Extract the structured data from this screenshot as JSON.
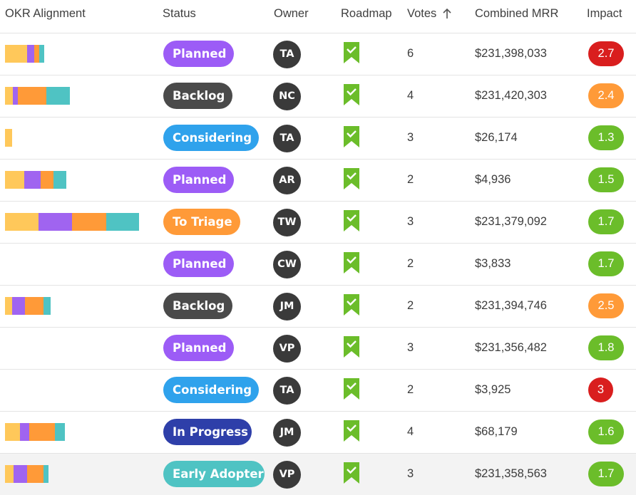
{
  "header": {
    "okr": "OKR Alignment",
    "status": "Status",
    "owner": "Owner",
    "roadmap": "Roadmap",
    "votes": "Votes",
    "mrr": "Combined MRR",
    "impact": "Impact"
  },
  "colors": {
    "okr": [
      "#ffc85a",
      "#a064f0",
      "#ff9a38",
      "#4fc3c3"
    ],
    "status": {
      "Planned": "#9c5cf6",
      "Backlog": "#4a4a4a",
      "Considering": "#2fa2ec",
      "To Triage": "#ff9a38",
      "In Progress": "#2e3fa9",
      "Early Adopter": "#4fc3c3"
    },
    "impact": {
      "red": "#d91e1e",
      "orange": "#ff9a38",
      "green": "#6bbd2a"
    },
    "roadmap": "#6bbd2a"
  },
  "rows": [
    {
      "okr": [
        31,
        10,
        7,
        7
      ],
      "status": "Planned",
      "owner": "TA",
      "roadmap": "bookmark-check-icon",
      "votes": "6",
      "mrr": "$231,398,033",
      "impact": "2.7",
      "impact_color": "red"
    },
    {
      "okr": [
        11,
        7,
        40,
        33
      ],
      "status": "Backlog",
      "owner": "NC",
      "roadmap": "bookmark-check-icon",
      "votes": "4",
      "mrr": "$231,420,303",
      "impact": "2.4",
      "impact_color": "orange"
    },
    {
      "okr": [
        10,
        0,
        0,
        0
      ],
      "status": "Considering",
      "owner": "TA",
      "roadmap": "bookmark-check-icon",
      "votes": "3",
      "mrr": "$26,174",
      "impact": "1.3",
      "impact_color": "green"
    },
    {
      "okr": [
        27,
        23,
        18,
        18
      ],
      "status": "Planned",
      "owner": "AR",
      "roadmap": "bookmark-check-icon",
      "votes": "2",
      "mrr": "$4,936",
      "impact": "1.5",
      "impact_color": "green"
    },
    {
      "okr": [
        47,
        47,
        48,
        46
      ],
      "status": "To Triage",
      "owner": "TW",
      "roadmap": "bookmark-check-icon",
      "votes": "3",
      "mrr": "$231,379,092",
      "impact": "1.7",
      "impact_color": "green"
    },
    {
      "okr": [
        0,
        0,
        0,
        0
      ],
      "status": "Planned",
      "owner": "CW",
      "roadmap": "bookmark-check-icon",
      "votes": "2",
      "mrr": "$3,833",
      "impact": "1.7",
      "impact_color": "green"
    },
    {
      "okr": [
        10,
        18,
        26,
        10
      ],
      "status": "Backlog",
      "owner": "JM",
      "roadmap": "bookmark-check-icon",
      "votes": "2",
      "mrr": "$231,394,746",
      "impact": "2.5",
      "impact_color": "orange"
    },
    {
      "okr": [
        0,
        0,
        0,
        0
      ],
      "status": "Planned",
      "owner": "VP",
      "roadmap": "bookmark-check-icon",
      "votes": "3",
      "mrr": "$231,356,482",
      "impact": "1.8",
      "impact_color": "green"
    },
    {
      "okr": [
        0,
        0,
        0,
        0
      ],
      "status": "Considering",
      "owner": "TA",
      "roadmap": "bookmark-check-icon",
      "votes": "2",
      "mrr": "$3,925",
      "impact": "3",
      "impact_color": "red"
    },
    {
      "okr": [
        21,
        13,
        36,
        14
      ],
      "status": "In Progress",
      "owner": "JM",
      "roadmap": "bookmark-check-icon",
      "votes": "4",
      "mrr": "$68,179",
      "impact": "1.6",
      "impact_color": "green"
    },
    {
      "okr": [
        12,
        19,
        23,
        7
      ],
      "status": "Early Adopter",
      "owner": "VP",
      "roadmap": "bookmark-check-icon",
      "votes": "3",
      "mrr": "$231,358,563",
      "impact": "1.7",
      "impact_color": "green"
    }
  ]
}
